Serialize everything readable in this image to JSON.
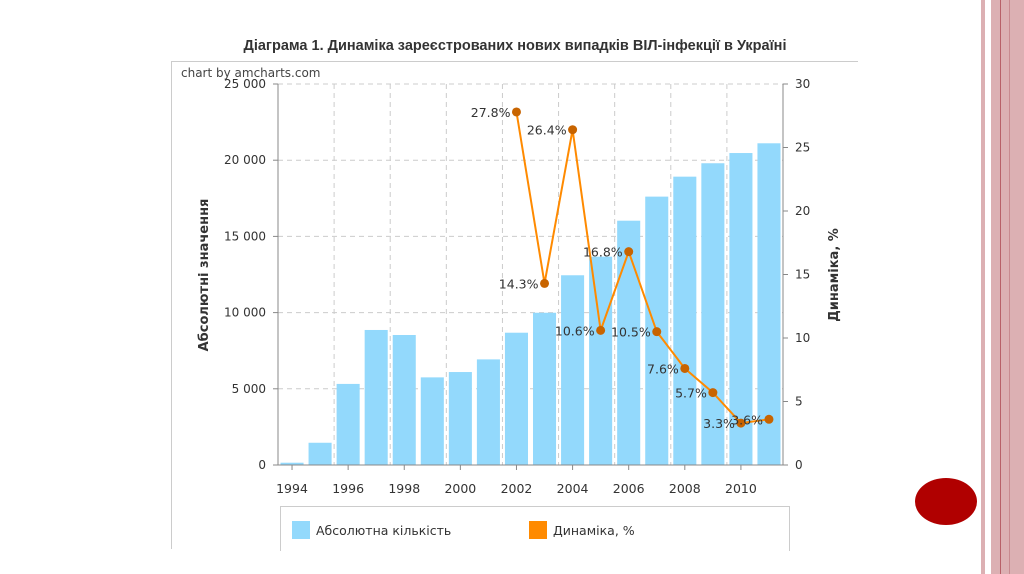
{
  "title": "Діаграма 1. Динаміка зареєстрованих нових випадків ВІЛ-інфекції в Україні",
  "credit": "chart by amcharts.com",
  "colors": {
    "bars": "#93d9fc",
    "line": "#ff8a00",
    "points": "#c86400",
    "slide_accent": "#b00000",
    "stripes": "#dcb0b3"
  },
  "chart_data": {
    "type": "bar+line",
    "title": "Діаграма 1. Динаміка зареєстрованих нових випадків ВІЛ-інфекції в Україні",
    "categories": [
      "1994",
      "1995",
      "1996",
      "1997",
      "1998",
      "1999",
      "2000",
      "2001",
      "2002",
      "2003",
      "2004",
      "2005",
      "2006",
      "2007",
      "2008",
      "2009",
      "2010",
      "2011"
    ],
    "x_tick_labels": [
      "1994",
      "1996",
      "1998",
      "2000",
      "2002",
      "2004",
      "2006",
      "2008",
      "2010"
    ],
    "ylabel": "Абсолютні значення",
    "y2label": "Динаміка, %",
    "ylim": [
      0,
      25000
    ],
    "y2lim": [
      0,
      30
    ],
    "y_tick_labels": [
      "0",
      "5 000",
      "10 000",
      "15 000",
      "20 000",
      "25 000"
    ],
    "y2_tick_labels": [
      "0",
      "5",
      "10",
      "15",
      "20",
      "25",
      "30"
    ],
    "grid": true,
    "legend": "bottom",
    "series": [
      {
        "name": "Абсолютна кількість",
        "type": "bar",
        "axis": "left",
        "values": [
          150,
          1460,
          5320,
          8860,
          8530,
          5750,
          6100,
          6930,
          8680,
          9990,
          12450,
          13670,
          16030,
          17610,
          18920,
          19800,
          20470,
          21110
        ]
      },
      {
        "name": "Динаміка, %",
        "type": "line",
        "axis": "right",
        "values": [
          null,
          null,
          null,
          null,
          null,
          null,
          null,
          null,
          27.8,
          14.3,
          26.4,
          10.6,
          16.8,
          10.5,
          7.6,
          5.7,
          3.3,
          3.6
        ],
        "labels": [
          null,
          null,
          null,
          null,
          null,
          null,
          null,
          null,
          "27.8%",
          "14.3%",
          "26.4%",
          "10.6%",
          "16.8%",
          "10.5%",
          "7.6%",
          "5.7%",
          "3.3%",
          "3.6%"
        ]
      }
    ]
  }
}
